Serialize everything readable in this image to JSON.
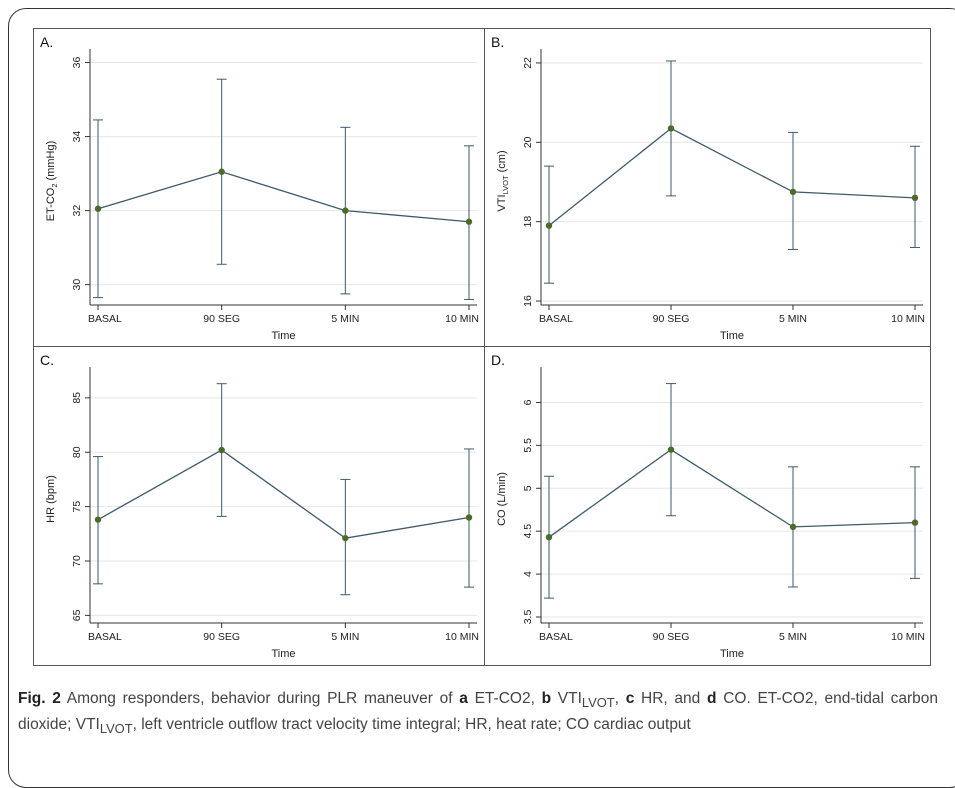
{
  "chart_data": [
    {
      "type": "line",
      "panel_label": "A.",
      "categories": [
        "BASAL",
        "90 SEG",
        "5 MIN",
        "10 MIN"
      ],
      "values": [
        32.05,
        33.05,
        32.0,
        31.7
      ],
      "ci_low": [
        29.65,
        30.55,
        29.75,
        29.6
      ],
      "ci_high": [
        34.45,
        35.55,
        34.25,
        33.75
      ],
      "xlabel": "Time",
      "ylabel_main": "ET-CO",
      "ylabel_sub": "2",
      "ylabel_tail": " (mmHg)",
      "yticks": [
        30,
        32,
        34,
        36
      ],
      "ylim": [
        29.45,
        36.15
      ]
    },
    {
      "type": "line",
      "panel_label": "B.",
      "categories": [
        "BASAL",
        "90 SEG",
        "5 MIN",
        "10 MIN"
      ],
      "values": [
        17.9,
        20.35,
        18.75,
        18.6
      ],
      "ci_low": [
        16.45,
        18.65,
        17.3,
        17.35
      ],
      "ci_high": [
        19.4,
        22.05,
        20.25,
        19.9
      ],
      "xlabel": "Time",
      "ylabel_main": "VTI",
      "ylabel_sub": "LVOT",
      "ylabel_tail": " (cm)",
      "yticks": [
        16,
        18,
        20,
        22
      ],
      "ylim": [
        15.9,
        22.15
      ]
    },
    {
      "type": "line",
      "panel_label": "C.",
      "categories": [
        "BASAL",
        "90 SEG",
        "5 MIN",
        "10 MIN"
      ],
      "values": [
        73.8,
        80.2,
        72.1,
        74.0
      ],
      "ci_low": [
        67.9,
        74.1,
        66.9,
        67.6
      ],
      "ci_high": [
        79.6,
        86.3,
        77.5,
        80.3
      ],
      "xlabel": "Time",
      "ylabel_main": "HR (bpm)",
      "ylabel_sub": "",
      "ylabel_tail": "",
      "yticks": [
        65,
        70,
        75,
        80,
        85
      ],
      "ylim": [
        64.3,
        87.1
      ]
    },
    {
      "type": "line",
      "panel_label": "D.",
      "categories": [
        "BASAL",
        "90 SEG",
        "5 MIN",
        "10 MIN"
      ],
      "values": [
        4.43,
        5.45,
        4.55,
        4.6
      ],
      "ci_low": [
        3.72,
        4.68,
        3.85,
        3.95
      ],
      "ci_high": [
        5.14,
        6.22,
        5.25,
        5.25
      ],
      "xlabel": "Time",
      "ylabel_main": "CO (L/min)",
      "ylabel_sub": "",
      "ylabel_tail": "",
      "yticks": [
        3.5,
        4,
        4.5,
        5,
        5.5,
        6
      ],
      "ylim": [
        3.43,
        6.32
      ]
    }
  ],
  "colors": {
    "line": "#3d5a6c",
    "marker": "#4a6b2a",
    "grid": "#e6e6e6",
    "axis": "#333333"
  },
  "caption": {
    "fig_label": "Fig. 2",
    "t1": " Among responders, behavior during PLR maneuver of ",
    "a": "a",
    "t2": " ET-CO2, ",
    "b": "b",
    "t3": " VTI",
    "sub1": "LVOT",
    "t4": ", ",
    "c": "c",
    "t5": " HR, and ",
    "d": "d",
    "t6": " CO. ET-CO2, end-tidal carbon dioxide; VTI",
    "sub2": "LVOT",
    "t7": ", left ventricle outflow tract velocity time integral; HR, heat rate; CO cardiac output"
  }
}
